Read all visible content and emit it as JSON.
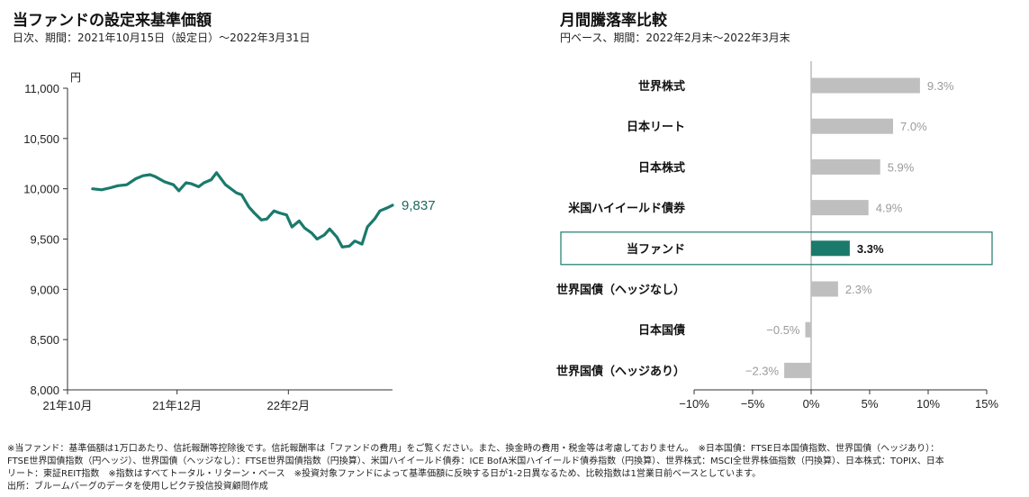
{
  "left_panel": {
    "title": "当ファンドの設定来基準価額",
    "subtitle": "日次、期間：2021年10月15日（設定日）～2022年3月31日"
  },
  "right_panel": {
    "title": "月間騰落率比較",
    "subtitle": "円ベース、期間：2022年2月末～2022年3月末"
  },
  "chart_data": [
    {
      "type": "line",
      "title": "当ファンドの設定来基準価額",
      "subtitle": "日次、期間：2021年10月15日（設定日）～2022年3月31日",
      "ylabel": "円",
      "ylim": [
        8000,
        11000
      ],
      "yticks": [
        "11,000",
        "10,500",
        "10,000",
        "9,500",
        "9,000",
        "8,500",
        "8,000"
      ],
      "ytick_values": [
        11000,
        10500,
        10000,
        9500,
        9000,
        8500,
        8000
      ],
      "xtick_labels": [
        "21年10月",
        "21年12月",
        "22年2月"
      ],
      "xtick_dates": [
        "2021-10-01",
        "2021-12-01",
        "2022-02-01"
      ],
      "x_range": [
        "2021-10-01",
        "2022-03-31"
      ],
      "end_label": "9,837",
      "grid": false,
      "color": "#1a7a6c",
      "series": [
        {
          "x": [
            "2021-10-15",
            "2021-10-20",
            "2021-10-25",
            "2021-10-29",
            "2021-11-03",
            "2021-11-08",
            "2021-11-12",
            "2021-11-16",
            "2021-11-19",
            "2021-11-24",
            "2021-11-29",
            "2021-12-02",
            "2021-12-06",
            "2021-12-09",
            "2021-12-13",
            "2021-12-16",
            "2021-12-20",
            "2021-12-23",
            "2021-12-28",
            "2022-01-03",
            "2022-01-06",
            "2022-01-10",
            "2022-01-13",
            "2022-01-17",
            "2022-01-20",
            "2022-01-24",
            "2022-01-27",
            "2022-01-31",
            "2022-02-03",
            "2022-02-07",
            "2022-02-10",
            "2022-02-14",
            "2022-02-17",
            "2022-02-21",
            "2022-02-24",
            "2022-02-28",
            "2022-03-03",
            "2022-03-07",
            "2022-03-10",
            "2022-03-14",
            "2022-03-17",
            "2022-03-21",
            "2022-03-24",
            "2022-03-28",
            "2022-03-31"
          ],
          "values": [
            10000,
            9990,
            10010,
            10030,
            10040,
            10100,
            10130,
            10140,
            10120,
            10070,
            10040,
            9980,
            10060,
            10050,
            10020,
            10060,
            10090,
            10160,
            10040,
            9960,
            9940,
            9820,
            9760,
            9690,
            9700,
            9780,
            9760,
            9740,
            9620,
            9680,
            9610,
            9560,
            9500,
            9540,
            9600,
            9520,
            9420,
            9430,
            9480,
            9450,
            9620,
            9700,
            9780,
            9810,
            9837
          ]
        }
      ]
    },
    {
      "type": "bar",
      "orientation": "horizontal",
      "title": "月間騰落率比較",
      "subtitle": "円ベース、期間：2022年2月末～2022年3月末",
      "categories": [
        "世界株式",
        "日本リート",
        "日本株式",
        "米国ハイイールド債券",
        "当ファンド",
        "世界国債（ヘッジなし）",
        "日本国債",
        "世界国債（ヘッジあり）"
      ],
      "values": [
        9.3,
        7.0,
        5.9,
        4.9,
        3.3,
        2.3,
        -0.5,
        -2.3
      ],
      "value_labels": [
        "9.3%",
        "7.0%",
        "5.9%",
        "4.9%",
        "3.3%",
        "2.3%",
        "−0.5%",
        "−2.3%"
      ],
      "xlim": [
        -10,
        15
      ],
      "xtick_values": [
        -10,
        -5,
        0,
        5,
        10,
        15
      ],
      "xtick_labels": [
        "−10%",
        "−5%",
        "0%",
        "5%",
        "10%",
        "15%"
      ],
      "highlight": "当ファンド",
      "colors": {
        "default": "#bfbfbf",
        "highlight": "#1a7a6c"
      }
    }
  ],
  "footnotes": [
    "※当ファンド：基準価額は1万口あたり、信託報酬等控除後です。信託報酬率は「ファンドの費用」をご覧ください。また、換金時の費用・税金等は考慮しておりません。　※日本国債：FTSE日本国債指数、世界国債（ヘッジあり）：",
    "FTSE世界国債指数（円ヘッジ）、世界国債（ヘッジなし）：FTSE世界国債指数（円換算）、米国ハイイールド債券：ICE BofA米国ハイイールド債券指数（円換算）、世界株式：MSCI全世界株価指数（円換算）、日本株式：TOPIX、日本",
    "リート：東証REIT指数　※指数はすべてトータル・リターン・ベース　※投資対象ファンドによって基準価額に反映する日が1-2日異なるため、比較指数は1営業日前ベースとしています。",
    "出所：ブルームバーグのデータを使用しピクテ投信投資顧問作成"
  ]
}
